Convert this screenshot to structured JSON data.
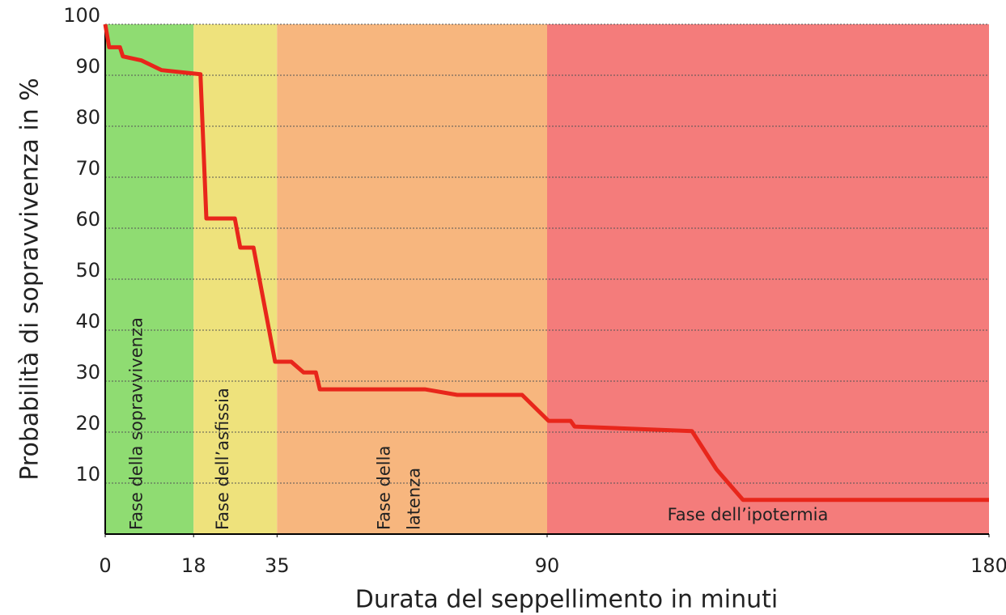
{
  "chart_data": {
    "type": "line",
    "y_label": "Probabilità di sopravvivenza in %",
    "x_label": "Durata del seppellimento in minuti",
    "xlim": [
      0,
      180
    ],
    "xticks": [
      0,
      18,
      35,
      90,
      180
    ],
    "ylim": [
      0,
      100
    ],
    "yticks": [
      10,
      20,
      30,
      40,
      50,
      60,
      70,
      80,
      90,
      100
    ],
    "grid": true,
    "bands": [
      {
        "label": [
          "Fase della sopravvivenza"
        ],
        "from": 0,
        "to": 18,
        "color": "#8fdc72"
      },
      {
        "label": [
          "Fase dell’asfissia"
        ],
        "from": 18,
        "to": 35,
        "color": "#eee27c"
      },
      {
        "label": [
          "Fase della",
          "latenza"
        ],
        "from": 35,
        "to": 90,
        "color": "#f7b67e"
      },
      {
        "label": [
          "Fase dell’ipotermia"
        ],
        "from": 90,
        "to": 180,
        "color": "#f47c7b"
      }
    ],
    "series": [
      {
        "color": "#e8261b",
        "x": [
          0,
          0.8,
          3,
          3.6,
          7.4,
          11.5,
          19.4,
          20.6,
          26.4,
          27.5,
          30.2,
          34.6,
          37.9,
          40.4,
          42.9,
          43.7,
          65.1,
          71.7,
          84.9,
          90.3,
          94.8,
          95.6,
          119.5,
          124.5,
          129.9,
          180
        ],
        "values": [
          100,
          95.5,
          95.5,
          93.7,
          92.9,
          91,
          90.2,
          61.9,
          61.9,
          56.2,
          56.2,
          33.8,
          33.8,
          31.7,
          31.7,
          28.4,
          28.4,
          27.3,
          27.3,
          22.2,
          22.2,
          21.1,
          20.2,
          12.7,
          6.7,
          6.7
        ]
      }
    ]
  }
}
